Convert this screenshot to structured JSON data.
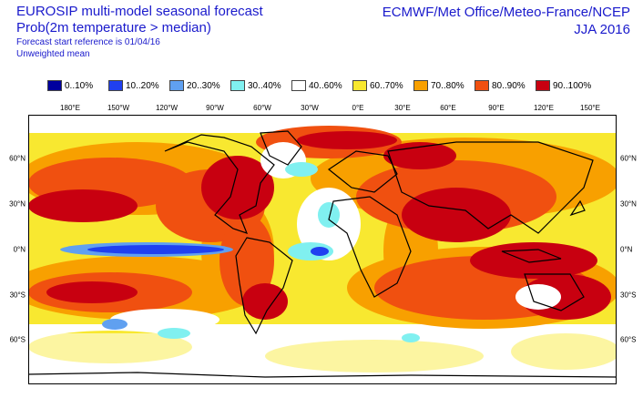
{
  "header": {
    "title_line1": "EUROSIP multi-model seasonal forecast",
    "title_line2": "Prob(2m temperature > median)",
    "title_line3": "Forecast start reference is 01/04/16",
    "title_line4": "Unweighted mean",
    "centres": "ECMWF/Met Office/Meteo-France/NCEP",
    "season": "JJA 2016"
  },
  "legend": [
    {
      "label": "0..10%",
      "color": "#00009e"
    },
    {
      "label": "10..20%",
      "color": "#2040f0"
    },
    {
      "label": "20..30%",
      "color": "#60a0f0"
    },
    {
      "label": "30..40%",
      "color": "#80f0f0"
    },
    {
      "label": "40..60%",
      "color": "#ffffff"
    },
    {
      "label": "60..70%",
      "color": "#f8e830"
    },
    {
      "label": "70..80%",
      "color": "#f8a000"
    },
    {
      "label": "80..90%",
      "color": "#f05010"
    },
    {
      "label": "90..100%",
      "color": "#c80010"
    }
  ],
  "map": {
    "lon_labels": [
      "180°E",
      "150°W",
      "120°W",
      "90°W",
      "60°W",
      "30°W",
      "0°E",
      "30°E",
      "60°E",
      "90°E",
      "120°E",
      "150°E"
    ],
    "lat_labels": [
      "60°N",
      "30°N",
      "0°N",
      "30°S",
      "60°S"
    ]
  }
}
